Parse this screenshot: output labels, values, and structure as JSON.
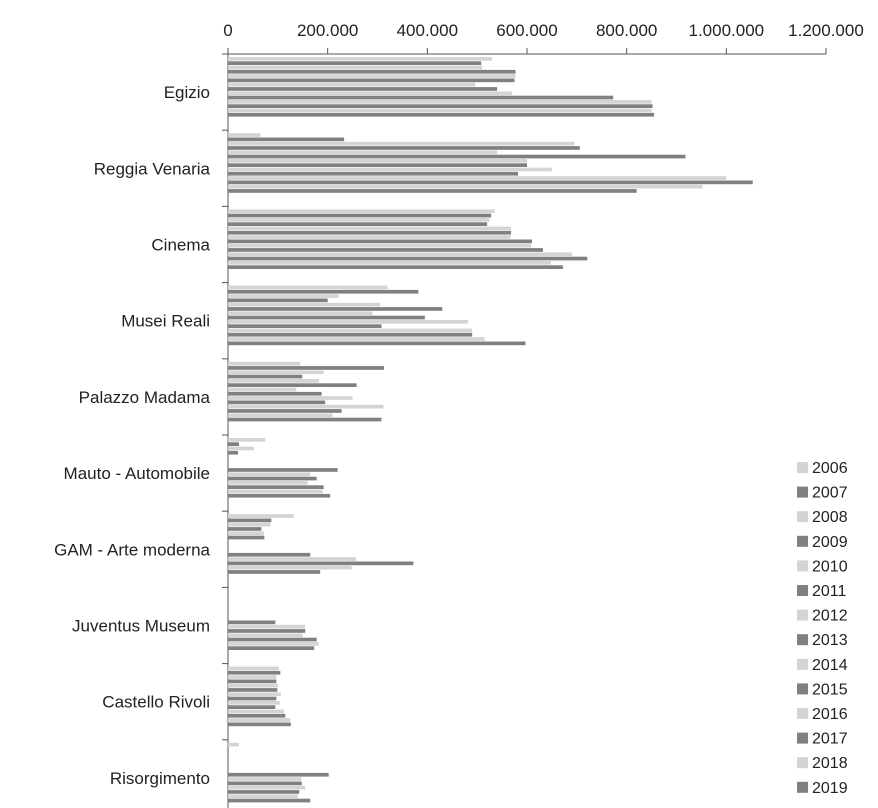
{
  "chart_data": {
    "type": "bar",
    "orientation": "horizontal",
    "title": "",
    "xlabel": "",
    "ylabel": "",
    "xlim": [
      0,
      1200000
    ],
    "x_ticks": [
      "0",
      "200.000",
      "400.000",
      "600.000",
      "800.000",
      "1.000.000",
      "1.200.000"
    ],
    "x_tick_values": [
      0,
      200000,
      400000,
      600000,
      800000,
      1000000,
      1200000
    ],
    "x_axis_position": "top",
    "grid": false,
    "legend_position": "right",
    "colors": {
      "light": "#d4d4d4",
      "dark": "#808080",
      "axis": "#555555",
      "text": "#222222"
    },
    "categories": [
      "Egizio",
      "Reggia Venaria",
      "Cinema",
      "Musei Reali",
      "Palazzo Madama",
      "Mauto - Automobile",
      "GAM - Arte moderna",
      "Juventus Museum",
      "Castello Rivoli",
      "Risorgimento"
    ],
    "series": [
      {
        "name": "2006",
        "values": [
          530000,
          65000,
          535000,
          320000,
          145000,
          75000,
          132000,
          0,
          102000,
          22000
        ]
      },
      {
        "name": "2007",
        "values": [
          508000,
          233000,
          528000,
          382000,
          313000,
          22000,
          87000,
          0,
          105000,
          0
        ]
      },
      {
        "name": "2008",
        "values": [
          510000,
          695000,
          525000,
          222000,
          192000,
          52000,
          85000,
          0,
          97000,
          0
        ]
      },
      {
        "name": "2009",
        "values": [
          577000,
          706000,
          520000,
          200000,
          149000,
          20000,
          67000,
          0,
          97000,
          0
        ]
      },
      {
        "name": "2010",
        "values": [
          577000,
          540000,
          568000,
          305000,
          183000,
          0,
          72000,
          0,
          100000,
          0
        ]
      },
      {
        "name": "2011",
        "values": [
          575000,
          918000,
          568000,
          430000,
          258000,
          0,
          73000,
          0,
          99000,
          0
        ]
      },
      {
        "name": "2012",
        "values": [
          496000,
          600000,
          567000,
          290000,
          137000,
          0,
          0,
          0,
          106000,
          0
        ]
      },
      {
        "name": "2013",
        "values": [
          540000,
          600000,
          610000,
          395000,
          188000,
          220000,
          0,
          95000,
          97000,
          202000
        ]
      },
      {
        "name": "2014",
        "values": [
          570000,
          650000,
          608000,
          482000,
          250000,
          165000,
          0,
          155000,
          104000,
          147000
        ]
      },
      {
        "name": "2015",
        "values": [
          773000,
          582000,
          632000,
          308000,
          195000,
          178000,
          165000,
          155000,
          95000,
          148000
        ]
      },
      {
        "name": "2016",
        "values": [
          850000,
          1000000,
          690000,
          490000,
          312000,
          160000,
          257000,
          150000,
          112000,
          155000
        ]
      },
      {
        "name": "2017",
        "values": [
          852000,
          1053000,
          721000,
          490000,
          228000,
          192000,
          372000,
          178000,
          115000,
          143000
        ]
      },
      {
        "name": "2018",
        "values": [
          850000,
          952000,
          648000,
          515000,
          210000,
          190000,
          248000,
          182000,
          125000,
          140000
        ]
      },
      {
        "name": "2019",
        "values": [
          855000,
          820000,
          672000,
          597000,
          308000,
          205000,
          185000,
          173000,
          126000,
          165000
        ]
      }
    ]
  }
}
